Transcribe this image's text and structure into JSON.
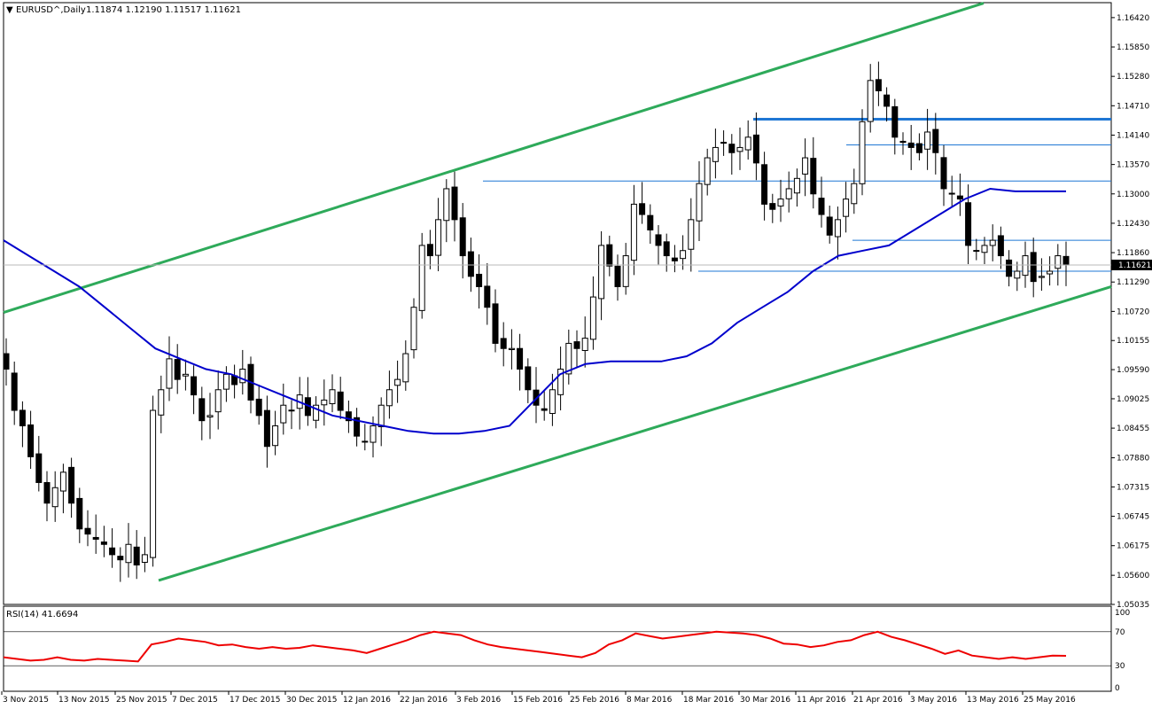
{
  "header": {
    "symbol": "EURUSD^,Daily",
    "ohlc": "1.11874 1.12190 1.11517 1.11621"
  },
  "rsi_panel": {
    "label": "RSI(14) 41.6694",
    "levels": [
      "100",
      "70",
      "30",
      "0"
    ]
  },
  "colors": {
    "ma_line": "#0000cc",
    "channel_lines": "#2eaa5a",
    "support_resistance": "#1f77d4",
    "rsi_line": "#ee0000",
    "candle_bear": "#000000",
    "candle_bull": "#ffffff"
  },
  "chart_data": [
    {
      "type": "candlestick",
      "ylim": [
        1.05035,
        1.1671
      ],
      "yticks": [
        1.05035,
        1.056,
        1.06175,
        1.06745,
        1.07315,
        1.0788,
        1.08455,
        1.09025,
        1.0959,
        1.10155,
        1.1072,
        1.1129,
        1.1186,
        1.1243,
        1.13,
        1.1357,
        1.1414,
        1.1471,
        1.1528,
        1.1585,
        1.1642
      ],
      "ytick_labels": [
        "1.05035",
        "1.05600",
        "1.06175",
        "1.06745",
        "1.07315",
        "1.07880",
        "1.08455",
        "1.09025",
        "1.09590",
        "1.10155",
        "1.10720",
        "1.11290",
        "1.11860",
        "1.12430",
        "1.13000",
        "1.13570",
        "1.14140",
        "1.14710",
        "1.15280",
        "1.15850",
        "1.16420"
      ],
      "current_price": 1.11621,
      "current_price_label": "1.11621",
      "xtick_labels": [
        "3 Nov 2015",
        "13 Nov 2015",
        "25 Nov 2015",
        "7 Dec 2015",
        "17 Dec 2015",
        "30 Dec 2015",
        "12 Jan 2016",
        "22 Jan 2016",
        "3 Feb 2016",
        "15 Feb 2016",
        "25 Feb 2016",
        "8 Mar 2016",
        "18 Mar 2016",
        "30 Mar 2016",
        "11 Apr 2016",
        "21 Apr 2016",
        "3 May 2016",
        "13 May 2016",
        "25 May 2016"
      ],
      "close_path": [
        1.096,
        1.088,
        1.085,
        1.079,
        1.074,
        1.07,
        1.073,
        1.076,
        1.07,
        1.065,
        1.064,
        1.063,
        1.062,
        1.06,
        1.059,
        1.062,
        1.058,
        1.06,
        1.088,
        1.092,
        1.098,
        1.094,
        1.095,
        1.091,
        1.086,
        1.087,
        1.092,
        1.095,
        1.093,
        1.096,
        1.09,
        1.087,
        1.081,
        1.085,
        1.089,
        1.088,
        1.091,
        1.087,
        1.089,
        1.09,
        1.092,
        1.088,
        1.086,
        1.083,
        1.082,
        1.085,
        1.089,
        1.092,
        1.094,
        1.099,
        1.108,
        1.12,
        1.118,
        1.125,
        1.131,
        1.125,
        1.118,
        1.114,
        1.112,
        1.108,
        1.101,
        1.1,
        1.1,
        1.096,
        1.092,
        1.089,
        1.088,
        1.092,
        1.096,
        1.101,
        1.1,
        1.102,
        1.11,
        1.12,
        1.116,
        1.112,
        1.118,
        1.128,
        1.126,
        1.123,
        1.12,
        1.118,
        1.117,
        1.119,
        1.125,
        1.132,
        1.137,
        1.139,
        1.14,
        1.138,
        1.139,
        1.141,
        1.136,
        1.128,
        1.127,
        1.129,
        1.131,
        1.133,
        1.137,
        1.13,
        1.126,
        1.122,
        1.125,
        1.129,
        1.132,
        1.144,
        1.152,
        1.15,
        1.147,
        1.141,
        1.14,
        1.139,
        1.138,
        1.142,
        1.138,
        1.131,
        1.13,
        1.129,
        1.12,
        1.119,
        1.12,
        1.121,
        1.118,
        1.114,
        1.115,
        1.118,
        1.113,
        1.114,
        1.115,
        1.118,
        1.1162
      ],
      "series": [
        {
          "name": "MA",
          "values": [
            1.121,
            1.118,
            1.115,
            1.112,
            1.108,
            1.104,
            1.1,
            1.098,
            1.096,
            1.095,
            1.093,
            1.091,
            1.089,
            1.087,
            1.086,
            1.085,
            1.084,
            1.0835,
            1.0835,
            1.084,
            1.085,
            1.09,
            1.095,
            1.097,
            1.0975,
            1.0975,
            1.0975,
            1.0985,
            1.101,
            1.105,
            1.108,
            1.111,
            1.115,
            1.118,
            1.119,
            1.12,
            1.123,
            1.126,
            1.129,
            1.131,
            1.1305,
            1.1305,
            1.1305
          ]
        },
        {
          "name": "Channel upper",
          "values": [
            1.107,
            1.167
          ]
        },
        {
          "name": "Channel lower",
          "values": [
            1.055,
            1.112
          ]
        },
        {
          "name": "Level 1.1445",
          "values": [
            1.1445
          ]
        },
        {
          "name": "Level 1.1395",
          "values": [
            1.1395
          ]
        },
        {
          "name": "Level 1.1325",
          "values": [
            1.1325
          ]
        },
        {
          "name": "Level 1.1210",
          "values": [
            1.121
          ]
        },
        {
          "name": "Level 1.1150",
          "values": [
            1.115
          ]
        }
      ]
    },
    {
      "type": "line",
      "ylim": [
        0,
        100
      ],
      "levels": [
        70,
        30
      ],
      "series": [
        {
          "name": "RSI(14)",
          "values": [
            40,
            38,
            36,
            37,
            40,
            37,
            36,
            38,
            37,
            36,
            35,
            55,
            58,
            62,
            60,
            58,
            54,
            55,
            52,
            50,
            52,
            50,
            51,
            54,
            52,
            50,
            48,
            45,
            50,
            55,
            60,
            66,
            70,
            68,
            66,
            60,
            55,
            52,
            50,
            48,
            46,
            44,
            42,
            40,
            45,
            55,
            60,
            68,
            65,
            62,
            64,
            66,
            68,
            70,
            69,
            68,
            66,
            62,
            56,
            55,
            52,
            54,
            58,
            60,
            66,
            70,
            64,
            60,
            55,
            50,
            44,
            48,
            42,
            40,
            38,
            40,
            38,
            40,
            42,
            41.67
          ]
        }
      ]
    }
  ]
}
